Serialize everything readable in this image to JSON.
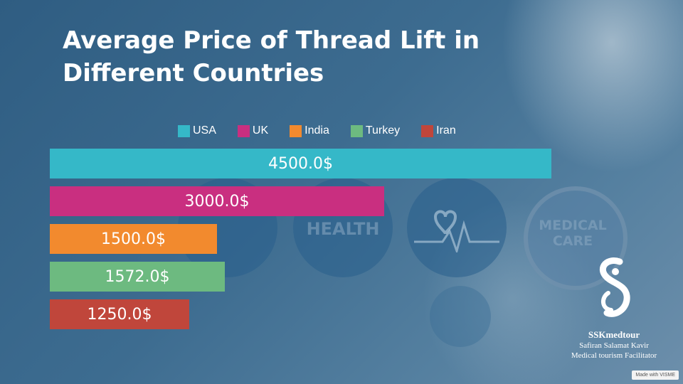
{
  "chart_data": {
    "type": "bar",
    "orientation": "horizontal",
    "title": "Average Price of Thread Lift in Different Countries",
    "categories": [
      "USA",
      "UK",
      "India",
      "Turkey",
      "Iran"
    ],
    "values": [
      4500.0,
      3000.0,
      1500.0,
      1572.0,
      1250.0
    ],
    "value_labels": [
      "4500.0$",
      "3000.0$",
      "1500.0$",
      "1572.0$",
      "1250.0$"
    ],
    "colors": [
      "#35b8c8",
      "#c92f80",
      "#f28a2e",
      "#6dba80",
      "#c0463b"
    ],
    "legend": "top-center",
    "grid": false
  },
  "background_icons": {
    "health_text": "HEALTH",
    "medical_care_text": "MEDICAL CARE"
  },
  "logo": {
    "name": "SSKmedtour",
    "line1": "Safiran Salamat Kavir",
    "line2": "Medical tourism Facilitator"
  },
  "footer": {
    "made_with": "Made with VISME"
  }
}
